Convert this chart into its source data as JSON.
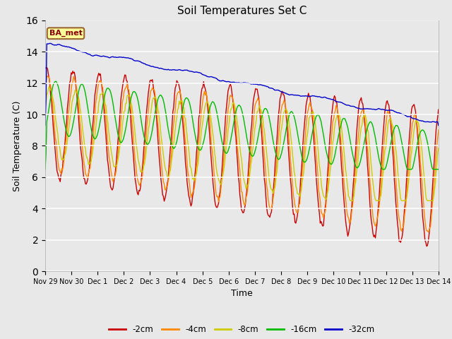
{
  "title": "Soil Temperatures Set C",
  "xlabel": "Time",
  "ylabel": "Soil Temperature (C)",
  "ylim": [
    0,
    16
  ],
  "yticks": [
    0,
    2,
    4,
    6,
    8,
    10,
    12,
    14,
    16
  ],
  "label_annotation": "BA_met",
  "plot_bg_color": "#e8e8e8",
  "fig_bg_color": "#e8e8e8",
  "line_colors": {
    "-2cm": "#cc0000",
    "-4cm": "#ff8800",
    "-8cm": "#cccc00",
    "-16cm": "#00bb00",
    "-32cm": "#0000cc"
  },
  "tick_labels": [
    "Nov 29",
    "Nov 30",
    "Dec 1",
    "Dec 2",
    "Dec 3",
    "Dec 4",
    "Dec 5",
    "Dec 6",
    "Dec 7",
    "Dec 8",
    "Dec 9",
    "Dec 10",
    "Dec 11",
    "Dec 12",
    "Dec 13",
    "Dec 14"
  ],
  "legend_labels": [
    "-2cm",
    "-4cm",
    "-8cm",
    "-16cm",
    "-32cm"
  ],
  "n_pts": 500,
  "n_days": 15.0
}
